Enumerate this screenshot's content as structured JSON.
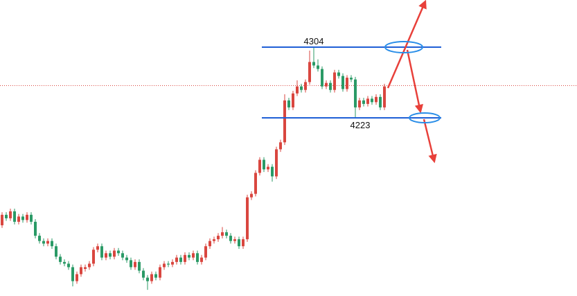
{
  "chart_data": {
    "type": "candlestick",
    "open": [
      4100,
      4112,
      4108,
      4116,
      4104,
      4110,
      4106,
      4112,
      4104,
      4088,
      4082,
      4079,
      4082,
      4076,
      4064,
      4058,
      4056,
      4052,
      4036,
      4044,
      4050,
      4052,
      4056,
      4072,
      4076,
      4063,
      4068,
      4064,
      4071,
      4068,
      4063,
      4060,
      4052,
      4058,
      4048,
      4040,
      4036,
      4044,
      4040,
      4052,
      4056,
      4055,
      4058,
      4063,
      4058,
      4066,
      4063,
      4068,
      4058,
      4063,
      4076,
      4082,
      4084,
      4088,
      4092,
      4088,
      4082,
      4084,
      4076,
      4084,
      4132,
      4136,
      4160,
      4175,
      4164,
      4167,
      4156,
      4187,
      4195,
      4243,
      4235,
      4251,
      4259,
      4255,
      4264,
      4287,
      4283,
      4279,
      4259,
      4263,
      4255,
      4275,
      4271,
      4256,
      4269,
      4267,
      4235,
      4243,
      4239,
      4245,
      4241,
      4247,
      4235
    ],
    "high": [
      4115,
      4115,
      4119,
      4119,
      4113,
      4113,
      4115,
      4115,
      4107,
      4091,
      4085,
      4085,
      4085,
      4079,
      4067,
      4061,
      4059,
      4055,
      4047,
      4055,
      4055,
      4059,
      4075,
      4079,
      4079,
      4071,
      4071,
      4074,
      4074,
      4071,
      4066,
      4063,
      4061,
      4061,
      4051,
      4043,
      4047,
      4047,
      4055,
      4059,
      4059,
      4061,
      4066,
      4066,
      4069,
      4069,
      4071,
      4071,
      4066,
      4079,
      4085,
      4087,
      4091,
      4098,
      4095,
      4091,
      4087,
      4087,
      4087,
      4135,
      4139,
      4163,
      4178,
      4178,
      4170,
      4170,
      4190,
      4198,
      4250,
      4246,
      4254,
      4266,
      4262,
      4267,
      4300,
      4304,
      4290,
      4282,
      4266,
      4266,
      4278,
      4278,
      4274,
      4272,
      4272,
      4270,
      4246,
      4246,
      4248,
      4248,
      4250,
      4250,
      4262
    ],
    "low": [
      4097,
      4105,
      4105,
      4101,
      4101,
      4103,
      4103,
      4101,
      4085,
      4079,
      4076,
      4076,
      4073,
      4061,
      4055,
      4053,
      4049,
      4030,
      4033,
      4041,
      4047,
      4049,
      4053,
      4069,
      4060,
      4060,
      4061,
      4061,
      4065,
      4060,
      4057,
      4049,
      4049,
      4045,
      4037,
      4026,
      4033,
      4037,
      4037,
      4049,
      4052,
      4052,
      4055,
      4055,
      4055,
      4060,
      4060,
      4055,
      4055,
      4060,
      4073,
      4079,
      4081,
      4085,
      4085,
      4079,
      4079,
      4073,
      4073,
      4081,
      4129,
      4133,
      4157,
      4161,
      4161,
      4150,
      4153,
      4184,
      4192,
      4232,
      4232,
      4248,
      4252,
      4252,
      4261,
      4280,
      4276,
      4256,
      4256,
      4252,
      4252,
      4268,
      4253,
      4253,
      4264,
      4223,
      4232,
      4236,
      4236,
      4238,
      4238,
      4232,
      4232
    ],
    "close": [
      4112,
      4108,
      4116,
      4104,
      4110,
      4106,
      4112,
      4104,
      4088,
      4082,
      4079,
      4082,
      4076,
      4064,
      4058,
      4056,
      4052,
      4036,
      4044,
      4052,
      4052,
      4056,
      4072,
      4076,
      4063,
      4068,
      4064,
      4071,
      4068,
      4063,
      4060,
      4052,
      4058,
      4048,
      4040,
      4036,
      4044,
      4040,
      4052,
      4056,
      4055,
      4058,
      4063,
      4058,
      4066,
      4063,
      4068,
      4058,
      4063,
      4076,
      4082,
      4084,
      4088,
      4092,
      4088,
      4082,
      4084,
      4076,
      4084,
      4132,
      4136,
      4160,
      4175,
      4164,
      4167,
      4156,
      4187,
      4195,
      4243,
      4235,
      4251,
      4259,
      4255,
      4264,
      4287,
      4283,
      4279,
      4259,
      4263,
      4255,
      4275,
      4271,
      4256,
      4269,
      4267,
      4235,
      4243,
      4239,
      4245,
      4241,
      4247,
      4235,
      4259
    ],
    "up_color": "#d9463f",
    "down_color": "#2a9a66",
    "ylim": [
      4019,
      4358
    ],
    "levels": [
      4304,
      4223
    ],
    "level_color": "#1f5fd6",
    "current_price": 4260,
    "current_price_color": "#d9463f"
  }
}
